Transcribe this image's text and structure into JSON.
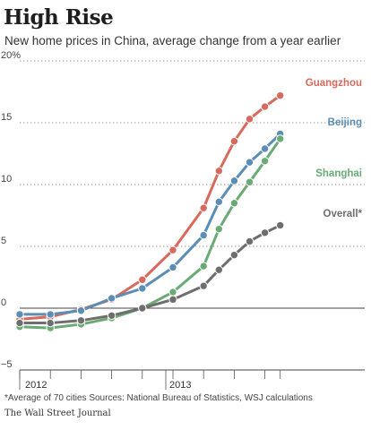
{
  "header": {
    "title": "High Rise",
    "subtitle": "New home prices in China, average change from a year earlier"
  },
  "footer": {
    "note": "*Average of 70 cities   Sources: National Bureau of Statistics, WSJ calculations",
    "source": "The Wall Street Journal"
  },
  "chart_data": {
    "type": "line",
    "title": "High Rise",
    "subtitle": "New home prices in China, average change from a year earlier",
    "x": [
      "2012-03",
      "2012-04",
      "2012-05",
      "2012-06",
      "2012-07",
      "2012-08",
      "2012-09",
      "2012-10",
      "2012-11",
      "2012-12",
      "2013-01",
      "2013-02",
      "2013-03",
      "2013-04",
      "2013-05",
      "2013-06",
      "2013-07",
      "2013-08"
    ],
    "x_tick_labels": [
      "2012",
      "2013"
    ],
    "ylim": [
      -5,
      20
    ],
    "yticks": [
      -5,
      0,
      5,
      10,
      15,
      20
    ],
    "ytick_labels": [
      "−5",
      "0",
      "5",
      "10",
      "15",
      "20%"
    ],
    "grid": true,
    "series": [
      {
        "name": "Guangzhou",
        "color": "#d9695c",
        "points": [
          [
            "2012-03",
            -0.9
          ],
          [
            "2012-05",
            -0.7
          ],
          [
            "2012-07",
            -0.1
          ],
          [
            "2012-09",
            0.7
          ],
          [
            "2012-11",
            2.3
          ],
          [
            "2013-01",
            4.7
          ],
          [
            "2013-03",
            8.1
          ],
          [
            "2013-04",
            11.1
          ],
          [
            "2013-05",
            13.5
          ],
          [
            "2013-06",
            15.3
          ],
          [
            "2013-07",
            16.3
          ],
          [
            "2013-08",
            17.2
          ]
        ]
      },
      {
        "name": "Beijing",
        "color": "#5b8db5",
        "points": [
          [
            "2012-03",
            -0.5
          ],
          [
            "2012-05",
            -0.5
          ],
          [
            "2012-07",
            -0.2
          ],
          [
            "2012-09",
            0.8
          ],
          [
            "2012-11",
            1.6
          ],
          [
            "2013-01",
            3.3
          ],
          [
            "2013-03",
            5.9
          ],
          [
            "2013-04",
            8.6
          ],
          [
            "2013-05",
            10.3
          ],
          [
            "2013-06",
            11.8
          ],
          [
            "2013-07",
            12.9
          ],
          [
            "2013-08",
            14.1
          ]
        ]
      },
      {
        "name": "Shanghai",
        "color": "#6aab75",
        "points": [
          [
            "2012-03",
            -1.5
          ],
          [
            "2012-05",
            -1.6
          ],
          [
            "2012-07",
            -1.3
          ],
          [
            "2012-09",
            -0.8
          ],
          [
            "2012-11",
            0.0
          ],
          [
            "2013-01",
            1.3
          ],
          [
            "2013-03",
            3.4
          ],
          [
            "2013-04",
            6.4
          ],
          [
            "2013-05",
            8.5
          ],
          [
            "2013-06",
            10.2
          ],
          [
            "2013-07",
            11.9
          ],
          [
            "2013-08",
            13.7
          ]
        ]
      },
      {
        "name": "Overall*",
        "color": "#6e6e6e",
        "points": [
          [
            "2012-03",
            -1.2
          ],
          [
            "2012-05",
            -1.2
          ],
          [
            "2012-07",
            -1.0
          ],
          [
            "2012-09",
            -0.6
          ],
          [
            "2012-11",
            0.0
          ],
          [
            "2013-01",
            0.7
          ],
          [
            "2013-03",
            1.8
          ],
          [
            "2013-04",
            3.1
          ],
          [
            "2013-05",
            4.3
          ],
          [
            "2013-06",
            5.4
          ],
          [
            "2013-07",
            6.1
          ],
          [
            "2013-08",
            6.7
          ]
        ]
      }
    ]
  }
}
